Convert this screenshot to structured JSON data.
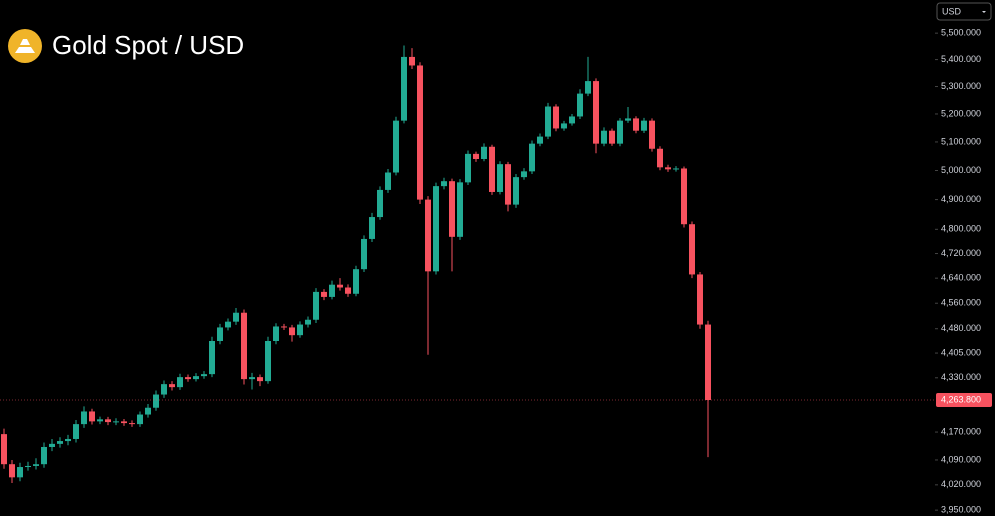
{
  "chart_data": {
    "type": "candlestick",
    "title": "Gold Spot / USD",
    "currency": "USD",
    "log_scale": true,
    "up_color": "#22ab94",
    "down_color": "#f7525f",
    "ylim": [
      3934,
      5628
    ],
    "yticks": [
      {
        "value": 5500,
        "label": "5,500.000"
      },
      {
        "value": 5400,
        "label": "5,400.000"
      },
      {
        "value": 5300,
        "label": "5,300.000"
      },
      {
        "value": 5200,
        "label": "5,200.000"
      },
      {
        "value": 5100,
        "label": "5,100.000"
      },
      {
        "value": 5000,
        "label": "5,000.000"
      },
      {
        "value": 4900,
        "label": "4,900.000"
      },
      {
        "value": 4800,
        "label": "4,800.000"
      },
      {
        "value": 4720,
        "label": "4,720.000"
      },
      {
        "value": 4640,
        "label": "4,640.000"
      },
      {
        "value": 4560,
        "label": "4,560.000"
      },
      {
        "value": 4480,
        "label": "4,480.000"
      },
      {
        "value": 4405,
        "label": "4,405.000"
      },
      {
        "value": 4330,
        "label": "4,330.000"
      },
      {
        "value": 4170,
        "label": "4,170.000"
      },
      {
        "value": 4090,
        "label": "4,090.000"
      },
      {
        "value": 4020,
        "label": "4,020.000"
      },
      {
        "value": 3950,
        "label": "3,950.000"
      }
    ],
    "last_price": {
      "value": 4263.8,
      "label": "4,263.800"
    },
    "open": [
      4164,
      4078,
      4041,
      4070,
      4073,
      4078,
      4127,
      4136,
      4144,
      4150,
      4193,
      4230,
      4201,
      4207,
      4199,
      4201,
      4196,
      4193,
      4221,
      4241,
      4280,
      4311,
      4302,
      4332,
      4326,
      4335,
      4341,
      4442,
      4484,
      4502,
      4530,
      4326,
      4332,
      4320,
      4442,
      4487,
      4484,
      4460,
      4493,
      4508,
      4596,
      4580,
      4619,
      4610,
      4590,
      4669,
      4768,
      4841,
      4933,
      4993,
      5176,
      5410,
      5378,
      4900,
      4662,
      4946,
      4963,
      4775,
      4959,
      5058,
      5040,
      5083,
      4926,
      5022,
      4883,
      4977,
      4997,
      5094,
      5119,
      5227,
      5148,
      5166,
      5191,
      5274,
      5320,
      5094,
      5140,
      5094,
      5176,
      5184,
      5140,
      5176,
      5076,
      5011,
      5004,
      5007,
      4817,
      4652,
      4493
    ],
    "high": [
      4180,
      4090,
      4082,
      4085,
      4095,
      4140,
      4150,
      4155,
      4162,
      4205,
      4245,
      4238,
      4215,
      4214,
      4210,
      4208,
      4204,
      4230,
      4252,
      4292,
      4322,
      4320,
      4342,
      4340,
      4344,
      4350,
      4455,
      4495,
      4512,
      4545,
      4540,
      4345,
      4340,
      4455,
      4497,
      4495,
      4492,
      4503,
      4518,
      4608,
      4605,
      4632,
      4640,
      4620,
      4680,
      4780,
      4855,
      4945,
      5005,
      5190,
      5453,
      5443,
      5390,
      4912,
      4958,
      4975,
      4972,
      4970,
      5070,
      5066,
      5095,
      5090,
      5032,
      5030,
      4988,
      5008,
      5105,
      5130,
      5240,
      5235,
      5175,
      5200,
      5290,
      5410,
      5330,
      5152,
      5148,
      5185,
      5225,
      5192,
      5186,
      5184,
      5085,
      5020,
      5015,
      5014,
      4826,
      4660,
      4505
    ],
    "low": [
      4065,
      4025,
      4030,
      4060,
      4063,
      4068,
      4115,
      4125,
      4132,
      4140,
      4182,
      4192,
      4193,
      4190,
      4190,
      4188,
      4185,
      4185,
      4212,
      4232,
      4270,
      4292,
      4294,
      4318,
      4319,
      4327,
      4332,
      4432,
      4475,
      4492,
      4310,
      4295,
      4305,
      4312,
      4432,
      4476,
      4440,
      4452,
      4484,
      4498,
      4570,
      4572,
      4600,
      4580,
      4582,
      4660,
      4758,
      4832,
      4923,
      4983,
      5166,
      5365,
      4885,
      4400,
      4652,
      4935,
      4662,
      4765,
      4950,
      5030,
      5032,
      4916,
      4918,
      4860,
      4872,
      4968,
      4988,
      5085,
      5110,
      5138,
      5140,
      5158,
      5182,
      5265,
      5060,
      5085,
      5086,
      5085,
      5168,
      5131,
      5132,
      5066,
      5001,
      4995,
      4996,
      4806,
      4640,
      4480,
      4098
    ],
    "close": [
      4078,
      4041,
      4070,
      4073,
      4078,
      4127,
      4136,
      4144,
      4150,
      4193,
      4230,
      4201,
      4207,
      4199,
      4201,
      4196,
      4193,
      4221,
      4241,
      4280,
      4311,
      4302,
      4332,
      4326,
      4335,
      4341,
      4442,
      4484,
      4502,
      4530,
      4326,
      4332,
      4320,
      4442,
      4487,
      4484,
      4460,
      4493,
      4508,
      4596,
      4580,
      4619,
      4610,
      4590,
      4669,
      4768,
      4841,
      4933,
      4993,
      5176,
      5410,
      5378,
      4900,
      4662,
      4946,
      4963,
      4775,
      4959,
      5058,
      5040,
      5083,
      4926,
      5022,
      4883,
      4977,
      4997,
      5094,
      5119,
      5227,
      5148,
      5166,
      5191,
      5274,
      5320,
      5094,
      5140,
      5094,
      5176,
      5184,
      5140,
      5176,
      5076,
      5011,
      5004,
      5007,
      4817,
      4652,
      4493,
      4263.8
    ]
  }
}
